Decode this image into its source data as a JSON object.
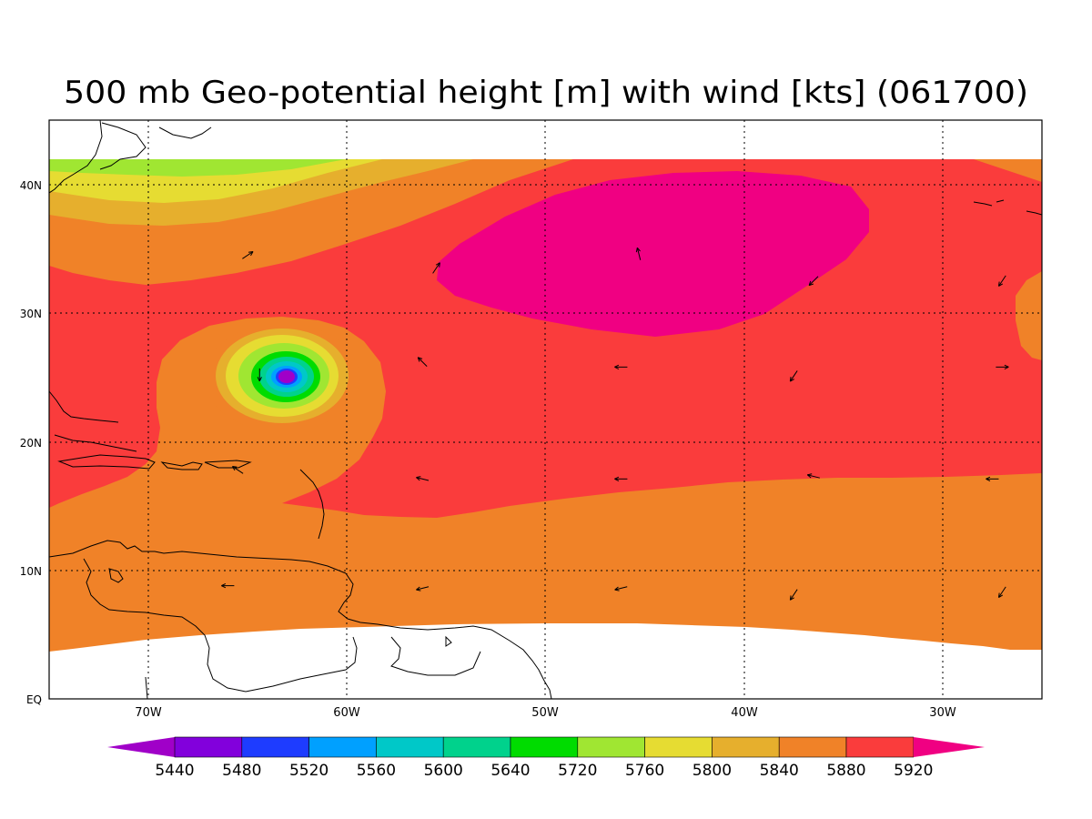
{
  "title": "500 mb Geo-potential height [m] with wind [kts] (061700)",
  "axes": {
    "lon_labels": [
      "70W",
      "60W",
      "50W",
      "40W",
      "30W"
    ],
    "lat_labels": [
      "EQ",
      "10N",
      "20N",
      "30N",
      "40N"
    ],
    "lon_range": [
      -75,
      -25
    ],
    "lat_range": [
      0,
      45
    ],
    "gridlines": true
  },
  "colorbar": {
    "levels": [
      "5440",
      "5480",
      "5520",
      "5560",
      "5600",
      "5640",
      "5720",
      "5760",
      "5800",
      "5840",
      "5880",
      "5920"
    ],
    "colors": [
      "#a000c8",
      "#8200dc",
      "#1e3cff",
      "#00a0ff",
      "#00c8c8",
      "#00d28c",
      "#00dc00",
      "#a0e632",
      "#e6dc32",
      "#e6af2d",
      "#f08228",
      "#fa3c3c",
      "#f00082"
    ]
  },
  "wind_vectors": [
    {
      "lon": -65,
      "lat": 34.5,
      "u": 3,
      "v": 2
    },
    {
      "lon": -55.5,
      "lat": 33.5,
      "u": 2,
      "v": 3
    },
    {
      "lon": -45.3,
      "lat": 34.6,
      "u": -1,
      "v": 4
    },
    {
      "lon": -36.5,
      "lat": 32.5,
      "u": -3,
      "v": -3
    },
    {
      "lon": -27,
      "lat": 32.5,
      "u": -2,
      "v": -3
    },
    {
      "lon": -64.4,
      "lat": 25.2,
      "u": 0,
      "v": -4
    },
    {
      "lon": -56.2,
      "lat": 26.2,
      "u": -3,
      "v": 3
    },
    {
      "lon": -46.2,
      "lat": 25.8,
      "u": -4,
      "v": 0
    },
    {
      "lon": -37.5,
      "lat": 25.1,
      "u": -2,
      "v": -3
    },
    {
      "lon": -27,
      "lat": 25.8,
      "u": 4,
      "v": 0
    },
    {
      "lon": -65.5,
      "lat": 17.8,
      "u": -3,
      "v": 2
    },
    {
      "lon": -56.2,
      "lat": 17.1,
      "u": -4,
      "v": 1
    },
    {
      "lon": -46.2,
      "lat": 17.1,
      "u": -4,
      "v": 0
    },
    {
      "lon": -36.5,
      "lat": 17.3,
      "u": -4,
      "v": 1
    },
    {
      "lon": -27.5,
      "lat": 17.1,
      "u": -4,
      "v": 0
    },
    {
      "lon": -66,
      "lat": 8.8,
      "u": -4,
      "v": 0
    },
    {
      "lon": -56.2,
      "lat": 8.6,
      "u": -4,
      "v": -1
    },
    {
      "lon": -46.2,
      "lat": 8.6,
      "u": -4,
      "v": -1
    },
    {
      "lon": -37.5,
      "lat": 8.1,
      "u": -2,
      "v": -3
    },
    {
      "lon": -27,
      "lat": 8.3,
      "u": -2,
      "v": -3
    }
  ]
}
